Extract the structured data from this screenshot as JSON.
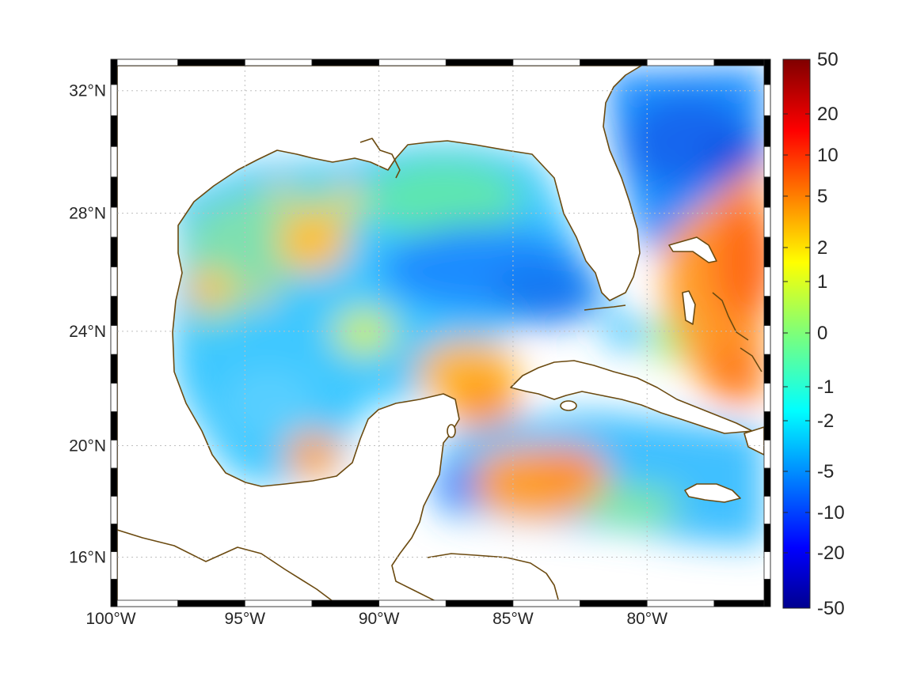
{
  "map": {
    "projection": "mercator",
    "lon_range": [
      -100,
      -75.4
    ],
    "lat_range": [
      14.2,
      33.0
    ],
    "lon_ticks": [
      {
        "value": -100,
        "label": "100°W"
      },
      {
        "value": -95,
        "label": "95°W"
      },
      {
        "value": -90,
        "label": "90°W"
      },
      {
        "value": -85,
        "label": "85°W"
      },
      {
        "value": -80,
        "label": "80°W"
      }
    ],
    "lat_ticks": [
      {
        "value": 16,
        "label": "16°N"
      },
      {
        "value": 20,
        "label": "20°N"
      },
      {
        "value": 24,
        "label": "24°N"
      },
      {
        "value": 28,
        "label": "28°N"
      },
      {
        "value": 32,
        "label": "32°N"
      }
    ],
    "grid": true,
    "frame_style": "black-white checkered border",
    "coastline_color": "#6b4a10",
    "colormap": "jet",
    "colorbar": {
      "position": "right",
      "ticks": [
        "50",
        "20",
        "10",
        "5",
        "2",
        "1",
        "0",
        "-1",
        "-2",
        "-5",
        "-10",
        "-20",
        "-50"
      ]
    }
  }
}
